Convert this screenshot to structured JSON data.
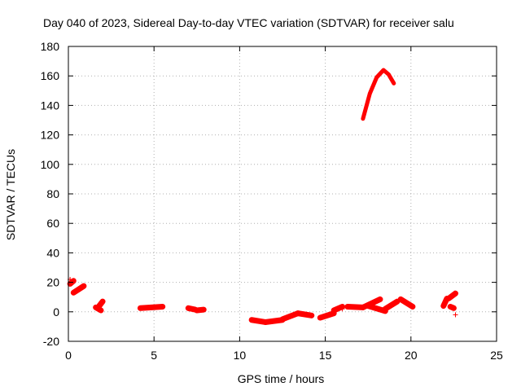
{
  "chart_data": {
    "type": "scatter",
    "title": "Day 040 of 2023, Sidereal Day-to-day VTEC variation (SDTVAR) for receiver salu",
    "xlabel": "GPS time / hours",
    "ylabel": "SDTVAR / TECUs",
    "xlim": [
      0,
      25
    ],
    "ylim": [
      -20,
      180
    ],
    "xticks": [
      0,
      5,
      10,
      15,
      20,
      25
    ],
    "yticks": [
      -20,
      0,
      20,
      40,
      60,
      80,
      100,
      120,
      140,
      160,
      180
    ],
    "grid": true,
    "legend": "none",
    "marker": "plus",
    "colors": {
      "series": "#ff0000",
      "axes": "#000000",
      "grid": "#b0b0b0"
    },
    "segments": [
      {
        "x": [
          0.1,
          0.3
        ],
        "y": [
          19.0,
          21.0
        ]
      },
      {
        "x": [
          0.3,
          0.9
        ],
        "y": [
          13.0,
          17.5
        ]
      },
      {
        "x": [
          1.6,
          1.9
        ],
        "y": [
          3.0,
          1.0
        ]
      },
      {
        "x": [
          1.8,
          2.0
        ],
        "y": [
          4.0,
          7.0
        ]
      },
      {
        "x": [
          4.2,
          5.5
        ],
        "y": [
          2.5,
          3.5
        ]
      },
      {
        "x": [
          7.0,
          7.4
        ],
        "y": [
          2.5,
          1.5
        ]
      },
      {
        "x": [
          7.5,
          7.9
        ],
        "y": [
          1.0,
          1.5
        ]
      },
      {
        "x": [
          10.7,
          11.5
        ],
        "y": [
          -5.5,
          -7.0
        ]
      },
      {
        "x": [
          11.5,
          12.5
        ],
        "y": [
          -7.0,
          -5.5
        ]
      },
      {
        "x": [
          12.5,
          13.4
        ],
        "y": [
          -5.0,
          -1.0
        ]
      },
      {
        "x": [
          13.4,
          14.2
        ],
        "y": [
          -1.0,
          -2.5
        ]
      },
      {
        "x": [
          14.7,
          15.5
        ],
        "y": [
          -4.0,
          -1.0
        ]
      },
      {
        "x": [
          15.5,
          16.0
        ],
        "y": [
          1.0,
          3.5
        ]
      },
      {
        "x": [
          16.3,
          17.2
        ],
        "y": [
          3.5,
          3.0
        ]
      },
      {
        "x": [
          17.2,
          18.2
        ],
        "y": [
          3.0,
          8.5
        ]
      },
      {
        "x": [
          17.5,
          18.5
        ],
        "y": [
          4.0,
          0.5
        ]
      },
      {
        "x": [
          18.5,
          19.2
        ],
        "y": [
          2.0,
          7.0
        ]
      },
      {
        "x": [
          19.4,
          20.1
        ],
        "y": [
          8.5,
          3.5
        ]
      },
      {
        "x": [
          21.9,
          22.1
        ],
        "y": [
          4.0,
          9.0
        ]
      },
      {
        "x": [
          22.2,
          22.6
        ],
        "y": [
          9.0,
          12.5
        ]
      },
      {
        "x": [
          22.3,
          22.5
        ],
        "y": [
          3.5,
          2.5
        ]
      }
    ],
    "arc": {
      "x": [
        17.2,
        17.6,
        18.0,
        18.4,
        18.7,
        19.0
      ],
      "y": [
        131,
        148,
        159,
        164,
        161,
        155
      ]
    },
    "points": [
      {
        "x": 0.1,
        "y": 22.0
      },
      {
        "x": 22.6,
        "y": -2.0
      },
      {
        "x": 16.0,
        "y": 2.0
      },
      {
        "x": 19.5,
        "y": 8.0
      }
    ]
  }
}
